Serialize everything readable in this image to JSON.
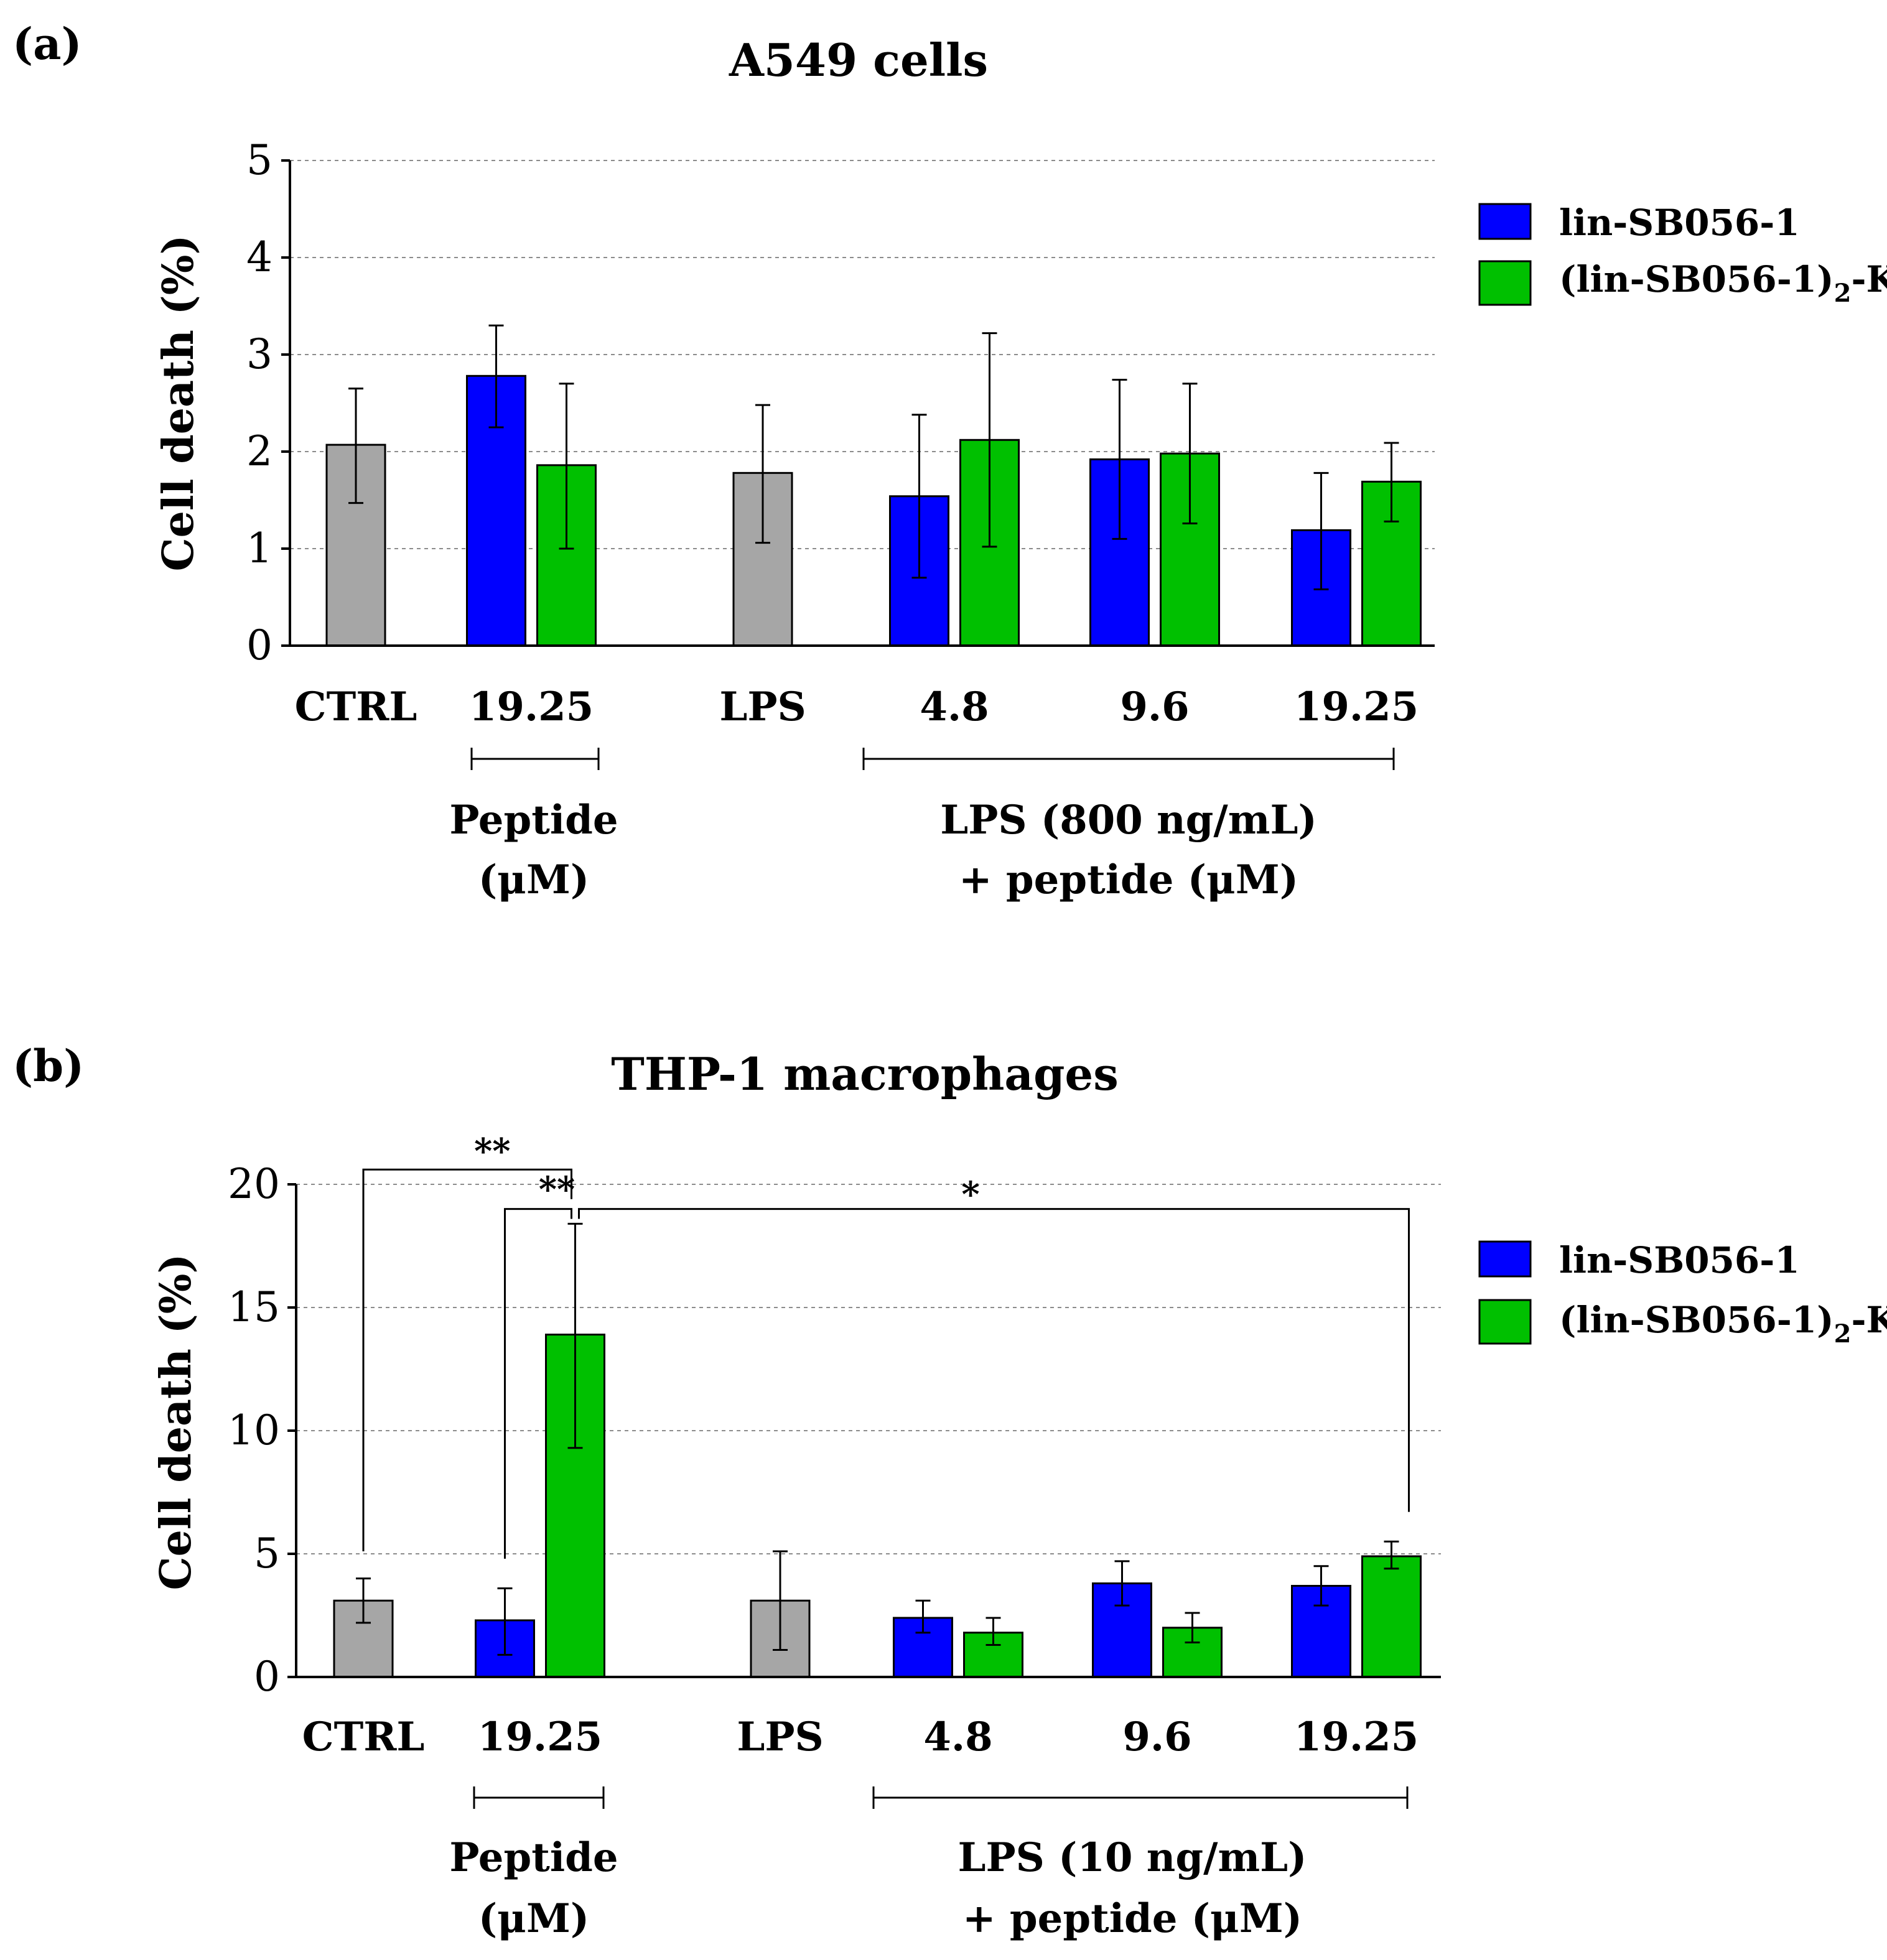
{
  "colors": {
    "lin": "#0000ff",
    "dimer": "#00c000",
    "control": "#a6a6a6",
    "grid": "#8c8c8c"
  },
  "legend": {
    "lin": "lin-SB056-1",
    "dimer_main": "(lin-SB056-1)",
    "dimer_sub": "2",
    "dimer_tail": "-K"
  },
  "chart_data": [
    {
      "panel": "(a)",
      "type": "bar",
      "title": "A549 cells",
      "ylabel": "Cell death (%)",
      "ylim": [
        0,
        5
      ],
      "yticks": [
        0,
        1,
        2,
        3,
        4,
        5
      ],
      "grid": true,
      "legend_position": "right",
      "group_labels": [
        "CTRL",
        "19.25",
        "LPS",
        "4.8",
        "9.6",
        "19.25"
      ],
      "bracket_labels": [
        {
          "line1": "Peptide",
          "line2": "(μM)"
        },
        {
          "line1": "LPS (800 ng/mL)",
          "line2": "+ peptide (μM)"
        }
      ],
      "bars": [
        {
          "group": "CTRL",
          "series": "control",
          "value": 2.07,
          "err_low": 1.47,
          "err_high": 2.65
        },
        {
          "group": "19.25",
          "series": "lin-SB056-1",
          "value": 2.78,
          "err_low": 2.25,
          "err_high": 3.3
        },
        {
          "group": "19.25",
          "series": "(lin-SB056-1)2-K",
          "value": 1.86,
          "err_low": 1.0,
          "err_high": 2.7
        },
        {
          "group": "LPS",
          "series": "control",
          "value": 1.78,
          "err_low": 1.06,
          "err_high": 2.48
        },
        {
          "group": "4.8",
          "series": "lin-SB056-1",
          "value": 1.54,
          "err_low": 0.7,
          "err_high": 2.38
        },
        {
          "group": "4.8",
          "series": "(lin-SB056-1)2-K",
          "value": 2.12,
          "err_low": 1.02,
          "err_high": 3.22
        },
        {
          "group": "9.6",
          "series": "lin-SB056-1",
          "value": 1.92,
          "err_low": 1.1,
          "err_high": 2.74
        },
        {
          "group": "9.6",
          "series": "(lin-SB056-1)2-K",
          "value": 1.98,
          "err_low": 1.26,
          "err_high": 2.7
        },
        {
          "group": "19.25",
          "series": "lin-SB056-1",
          "value": 1.19,
          "err_low": 0.58,
          "err_high": 1.78
        },
        {
          "group": "19.25",
          "series": "(lin-SB056-1)2-K",
          "value": 1.69,
          "err_low": 1.28,
          "err_high": 2.09
        }
      ]
    },
    {
      "panel": "(b)",
      "type": "bar",
      "title": "THP-1 macrophages",
      "ylabel": "Cell death (%)",
      "ylim": [
        0,
        20
      ],
      "yticks": [
        0,
        5,
        10,
        15,
        20
      ],
      "grid": true,
      "legend_position": "right",
      "group_labels": [
        "CTRL",
        "19.25",
        "LPS",
        "4.8",
        "9.6",
        "19.25"
      ],
      "bracket_labels": [
        {
          "line1": "Peptide",
          "line2": "(μM)"
        },
        {
          "line1": "LPS (10 ng/mL)",
          "line2": "+ peptide (μM)"
        }
      ],
      "bars": [
        {
          "group": "CTRL",
          "series": "control",
          "value": 3.1,
          "err_low": 2.2,
          "err_high": 4.0
        },
        {
          "group": "19.25",
          "series": "lin-SB056-1",
          "value": 2.3,
          "err_low": 0.9,
          "err_high": 3.6
        },
        {
          "group": "19.25",
          "series": "(lin-SB056-1)2-K",
          "value": 13.9,
          "err_low": 9.3,
          "err_high": 18.4
        },
        {
          "group": "LPS",
          "series": "control",
          "value": 3.1,
          "err_low": 1.1,
          "err_high": 5.1
        },
        {
          "group": "4.8",
          "series": "lin-SB056-1",
          "value": 2.4,
          "err_low": 1.8,
          "err_high": 3.1
        },
        {
          "group": "4.8",
          "series": "(lin-SB056-1)2-K",
          "value": 1.8,
          "err_low": 1.3,
          "err_high": 2.4
        },
        {
          "group": "9.6",
          "series": "lin-SB056-1",
          "value": 3.8,
          "err_low": 2.9,
          "err_high": 4.7
        },
        {
          "group": "9.6",
          "series": "(lin-SB056-1)2-K",
          "value": 2.0,
          "err_low": 1.4,
          "err_high": 2.6
        },
        {
          "group": "19.25",
          "series": "lin-SB056-1",
          "value": 3.7,
          "err_low": 2.9,
          "err_high": 4.5
        },
        {
          "group": "19.25",
          "series": "(lin-SB056-1)2-K",
          "value": 4.9,
          "err_low": 4.4,
          "err_high": 5.5
        }
      ],
      "significance": [
        {
          "label": "**",
          "from_bar": 0,
          "to_bar": 2,
          "level": 20.6
        },
        {
          "label": "**",
          "from_bar": 1,
          "to_bar": 2,
          "level": 19.0
        },
        {
          "label": "*",
          "from_bar": 2,
          "to_bar": 9,
          "level": 19.0
        }
      ]
    }
  ]
}
